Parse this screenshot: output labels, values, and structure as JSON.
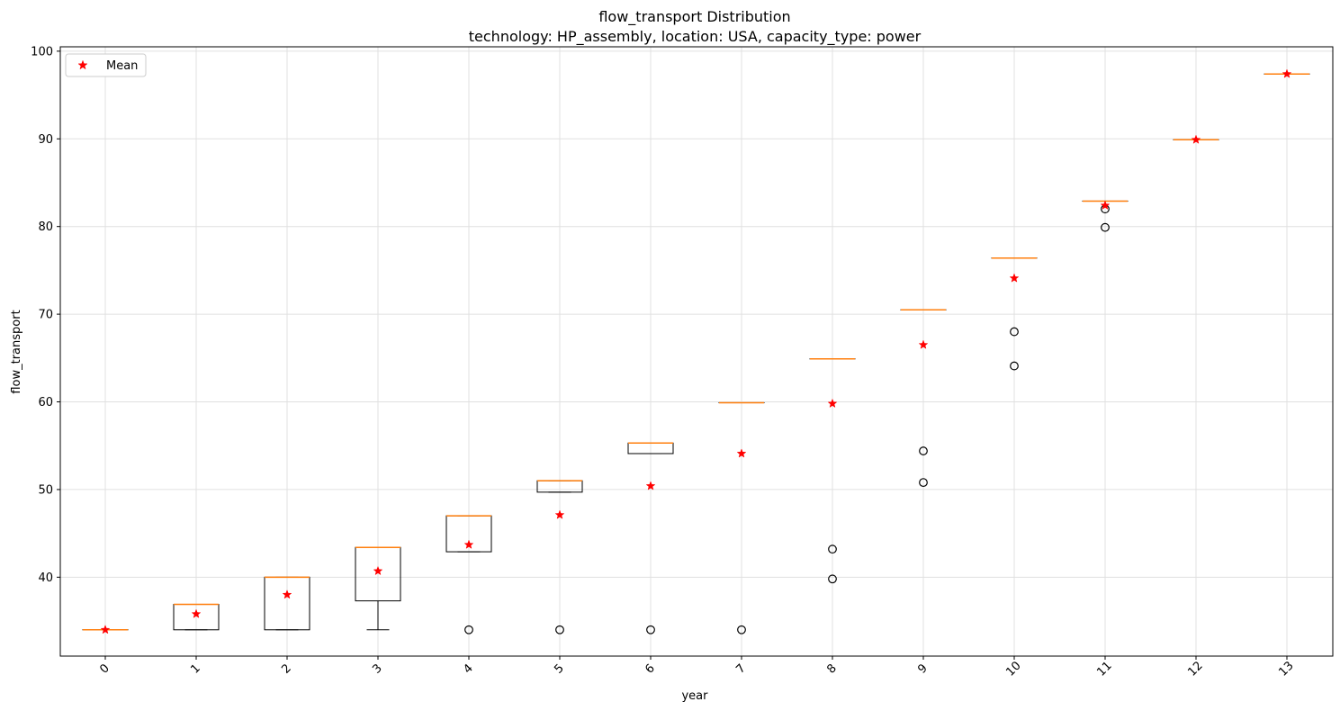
{
  "chart_data": {
    "type": "box",
    "title": "flow_transport Distribution",
    "subtitle": "technology: HP_assembly, location: USA, capacity_type: power",
    "xlabel": "year",
    "ylabel": "flow_transport",
    "ylim": [
      31,
      100.5
    ],
    "yticks": [
      40,
      50,
      60,
      70,
      80,
      90,
      100
    ],
    "grid": true,
    "legend": {
      "position": "top-left",
      "entries": [
        {
          "label": "Mean",
          "marker": "red-star"
        }
      ]
    },
    "colors": {
      "box": "#000000",
      "median": "#ff7f0e",
      "mean": "#ff0000",
      "grid": "#e0e0e0"
    },
    "categories": [
      "0",
      "1",
      "2",
      "3",
      "4",
      "5",
      "6",
      "7",
      "8",
      "9",
      "10",
      "11",
      "12",
      "13"
    ],
    "boxes": [
      {
        "year": "0",
        "whislo": 34.0,
        "q1": 34.0,
        "med": 34.0,
        "q3": 34.0,
        "whishi": 34.0,
        "mean": 34.0,
        "fliers": []
      },
      {
        "year": "1",
        "whislo": 34.0,
        "q1": 34.0,
        "med": 36.9,
        "q3": 36.9,
        "whishi": 36.9,
        "mean": 35.8,
        "fliers": []
      },
      {
        "year": "2",
        "whislo": 34.0,
        "q1": 34.0,
        "med": 40.0,
        "q3": 40.0,
        "whishi": 40.0,
        "mean": 38.0,
        "fliers": []
      },
      {
        "year": "3",
        "whislo": 34.0,
        "q1": 37.3,
        "med": 43.4,
        "q3": 43.4,
        "whishi": 43.4,
        "mean": 40.7,
        "fliers": []
      },
      {
        "year": "4",
        "whislo": 42.9,
        "q1": 42.9,
        "med": 47.0,
        "q3": 47.0,
        "whishi": 47.0,
        "mean": 43.7,
        "fliers": [
          34.0
        ]
      },
      {
        "year": "5",
        "whislo": 49.7,
        "q1": 49.7,
        "med": 51.0,
        "q3": 51.0,
        "whishi": 51.0,
        "mean": 47.1,
        "fliers": [
          34.0
        ]
      },
      {
        "year": "6",
        "whislo": 54.1,
        "q1": 54.1,
        "med": 55.3,
        "q3": 55.3,
        "whishi": 55.3,
        "mean": 50.4,
        "fliers": [
          34.0
        ]
      },
      {
        "year": "7",
        "whislo": 59.9,
        "q1": 59.9,
        "med": 59.9,
        "q3": 59.9,
        "whishi": 59.9,
        "mean": 54.1,
        "fliers": [
          34.0
        ]
      },
      {
        "year": "8",
        "whislo": 64.9,
        "q1": 64.9,
        "med": 64.9,
        "q3": 64.9,
        "whishi": 64.9,
        "mean": 59.8,
        "fliers": [
          43.2,
          39.8
        ]
      },
      {
        "year": "9",
        "whislo": 70.5,
        "q1": 70.5,
        "med": 70.5,
        "q3": 70.5,
        "whishi": 70.5,
        "mean": 66.5,
        "fliers": [
          54.4,
          50.8
        ]
      },
      {
        "year": "10",
        "whislo": 76.4,
        "q1": 76.4,
        "med": 76.4,
        "q3": 76.4,
        "whishi": 76.4,
        "mean": 74.1,
        "fliers": [
          68.0,
          64.1
        ]
      },
      {
        "year": "11",
        "whislo": 82.9,
        "q1": 82.9,
        "med": 82.9,
        "q3": 82.9,
        "whishi": 82.9,
        "mean": 82.4,
        "fliers": [
          82.0,
          79.9
        ]
      },
      {
        "year": "12",
        "whislo": 89.9,
        "q1": 89.9,
        "med": 89.9,
        "q3": 89.9,
        "whishi": 89.9,
        "mean": 89.9,
        "fliers": []
      },
      {
        "year": "13",
        "whislo": 97.4,
        "q1": 97.4,
        "med": 97.4,
        "q3": 97.4,
        "whishi": 97.4,
        "mean": 97.4,
        "fliers": []
      }
    ]
  }
}
